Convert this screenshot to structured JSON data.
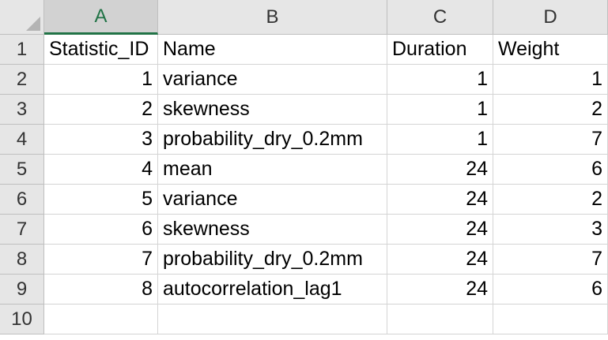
{
  "columns": [
    "A",
    "B",
    "C",
    "D"
  ],
  "rows": [
    "1",
    "2",
    "3",
    "4",
    "5",
    "6",
    "7",
    "8",
    "9",
    "10"
  ],
  "header": {
    "statistic_id": "Statistic_ID",
    "name": "Name",
    "duration": "Duration",
    "weight": "Weight"
  },
  "data": [
    {
      "id": "1",
      "name": "variance",
      "duration": "1",
      "weight": "1"
    },
    {
      "id": "2",
      "name": "skewness",
      "duration": "1",
      "weight": "2"
    },
    {
      "id": "3",
      "name": "probability_dry_0.2mm",
      "duration": "1",
      "weight": "7"
    },
    {
      "id": "4",
      "name": "mean",
      "duration": "24",
      "weight": "6"
    },
    {
      "id": "5",
      "name": "variance",
      "duration": "24",
      "weight": "2"
    },
    {
      "id": "6",
      "name": "skewness",
      "duration": "24",
      "weight": "3"
    },
    {
      "id": "7",
      "name": "probability_dry_0.2mm",
      "duration": "24",
      "weight": "7"
    },
    {
      "id": "8",
      "name": "autocorrelation_lag1",
      "duration": "24",
      "weight": "6"
    }
  ],
  "colors": {
    "selected_accent": "#217346",
    "header_bg": "#e6e6e6",
    "gridline": "#d4d4d4"
  }
}
